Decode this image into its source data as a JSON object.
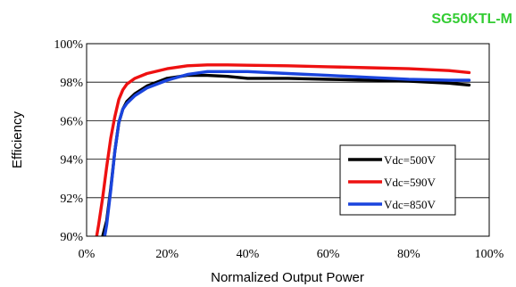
{
  "chart_data": {
    "type": "line",
    "title": "SG50KTL-M",
    "xlabel": "Normalized Output Power",
    "ylabel": "Efficiency",
    "xlim": [
      0,
      100
    ],
    "ylim": [
      90,
      100
    ],
    "x_ticks": [
      0,
      20,
      40,
      60,
      80,
      100
    ],
    "x_tick_labels": [
      "0%",
      "20%",
      "40%",
      "60%",
      "80%",
      "100%"
    ],
    "y_ticks": [
      90,
      92,
      94,
      96,
      98,
      100
    ],
    "y_tick_labels": [
      "90%",
      "92%",
      "94%",
      "96%",
      "98%",
      "100%"
    ],
    "grid": "horizontal",
    "legend_position": "right",
    "series": [
      {
        "name": "Vdc=500V",
        "color": "#000000",
        "x": [
          4,
          5,
          6,
          7,
          8,
          9,
          10,
          12,
          15,
          20,
          25,
          30,
          35,
          40,
          50,
          60,
          70,
          80,
          90,
          95
        ],
        "y": [
          90.0,
          90.8,
          92.5,
          94.4,
          95.9,
          96.6,
          97.0,
          97.4,
          97.8,
          98.2,
          98.35,
          98.35,
          98.3,
          98.2,
          98.2,
          98.15,
          98.1,
          98.05,
          97.95,
          97.85
        ]
      },
      {
        "name": "Vdc=590V",
        "color": "#ee1111",
        "x": [
          2.5,
          3,
          4,
          5,
          6,
          7,
          8,
          9,
          10,
          12,
          15,
          20,
          25,
          30,
          35,
          40,
          50,
          60,
          70,
          80,
          90,
          95
        ],
        "y": [
          90.0,
          90.6,
          92.0,
          93.6,
          95.1,
          96.2,
          97.1,
          97.6,
          97.9,
          98.2,
          98.45,
          98.7,
          98.85,
          98.9,
          98.9,
          98.88,
          98.85,
          98.8,
          98.75,
          98.7,
          98.6,
          98.5
        ]
      },
      {
        "name": "Vdc=850V",
        "color": "#1a44dd",
        "x": [
          4.5,
          5,
          6,
          7,
          8,
          9,
          10,
          12,
          15,
          20,
          25,
          30,
          35,
          40,
          50,
          60,
          70,
          80,
          90,
          95
        ],
        "y": [
          90.0,
          90.6,
          92.4,
          94.4,
          95.9,
          96.6,
          96.9,
          97.3,
          97.7,
          98.1,
          98.4,
          98.55,
          98.55,
          98.55,
          98.45,
          98.35,
          98.25,
          98.15,
          98.1,
          98.1
        ]
      }
    ]
  }
}
